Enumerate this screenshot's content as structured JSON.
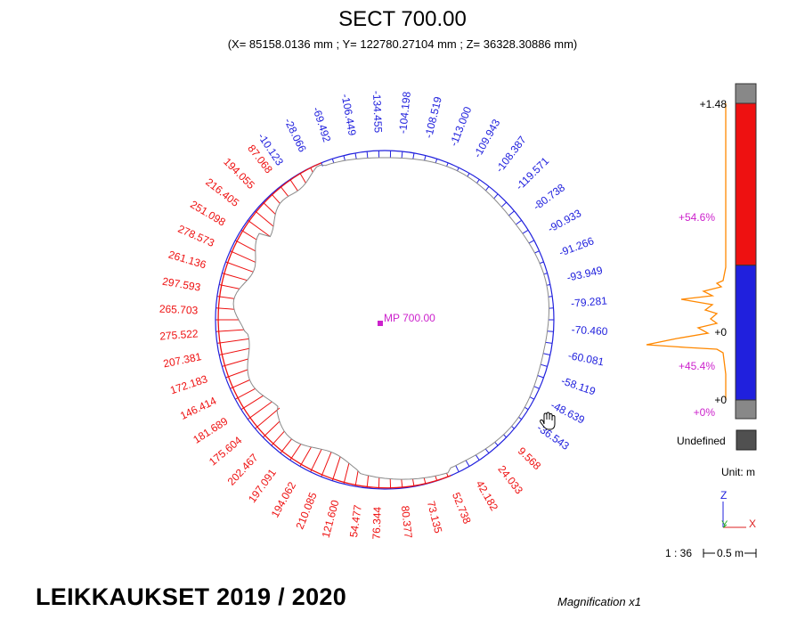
{
  "header": {
    "title": "SECT 700.00",
    "coords": "(X= 85158.0136 mm ; Y= 122780.27104 mm ; Z= 36328.30886 mm)"
  },
  "center_label": "MP 700.00",
  "colors": {
    "blue": "#2020dd",
    "red": "#ee1111",
    "magenta": "#cc22cc",
    "orange": "#ff8800",
    "surface": "#8a8a8a",
    "gray": "#888888"
  },
  "section": {
    "blue_labels": [
      "-10.123",
      "-28.066",
      "-69.492",
      "-106.449",
      "-134.455",
      "-104.198",
      "-108.519",
      "-113.000",
      "-109.943",
      "-108.387",
      "-119.571",
      "-80.738",
      "-90.933",
      "-91.266",
      "-93.949",
      "-79.281",
      "-70.460",
      "-60.081",
      "-58.119",
      "-48.639",
      "-36.543"
    ],
    "red_labels_left": [
      "54.477",
      "121.600",
      "210.085",
      "194.062",
      "197.091",
      "202.467",
      "175.604",
      "181.689",
      "146.414",
      "172.183",
      "207.381",
      "275.522",
      "265.703",
      "297.593",
      "261.136",
      "278.573",
      "251.098",
      "216.405",
      "194.055",
      "87.068"
    ],
    "red_labels_right": [
      "9.568",
      "24.033",
      "42.182",
      "52.738",
      "73.135",
      "80.377",
      "76.344"
    ]
  },
  "legend": {
    "top_value": "+1.48",
    "upper_pct": "+54.6%",
    "mid_value": "+0",
    "lower_pct": "+45.4%",
    "bottom_value": "+0",
    "bottom_pct": "+0%",
    "undefined_label": "Undefined",
    "unit": "Unit: m",
    "shares": {
      "red": 54.6,
      "blue": 45.4,
      "bottom": 0
    }
  },
  "axes": {
    "z": "Z",
    "y": "Y",
    "x": "X"
  },
  "scale": {
    "ratio": "1 : 36",
    "bar": "0.5 m"
  },
  "footer": {
    "title": "LEIKKAUKSET 2019 / 2020",
    "magnification": "Magnification x1"
  }
}
